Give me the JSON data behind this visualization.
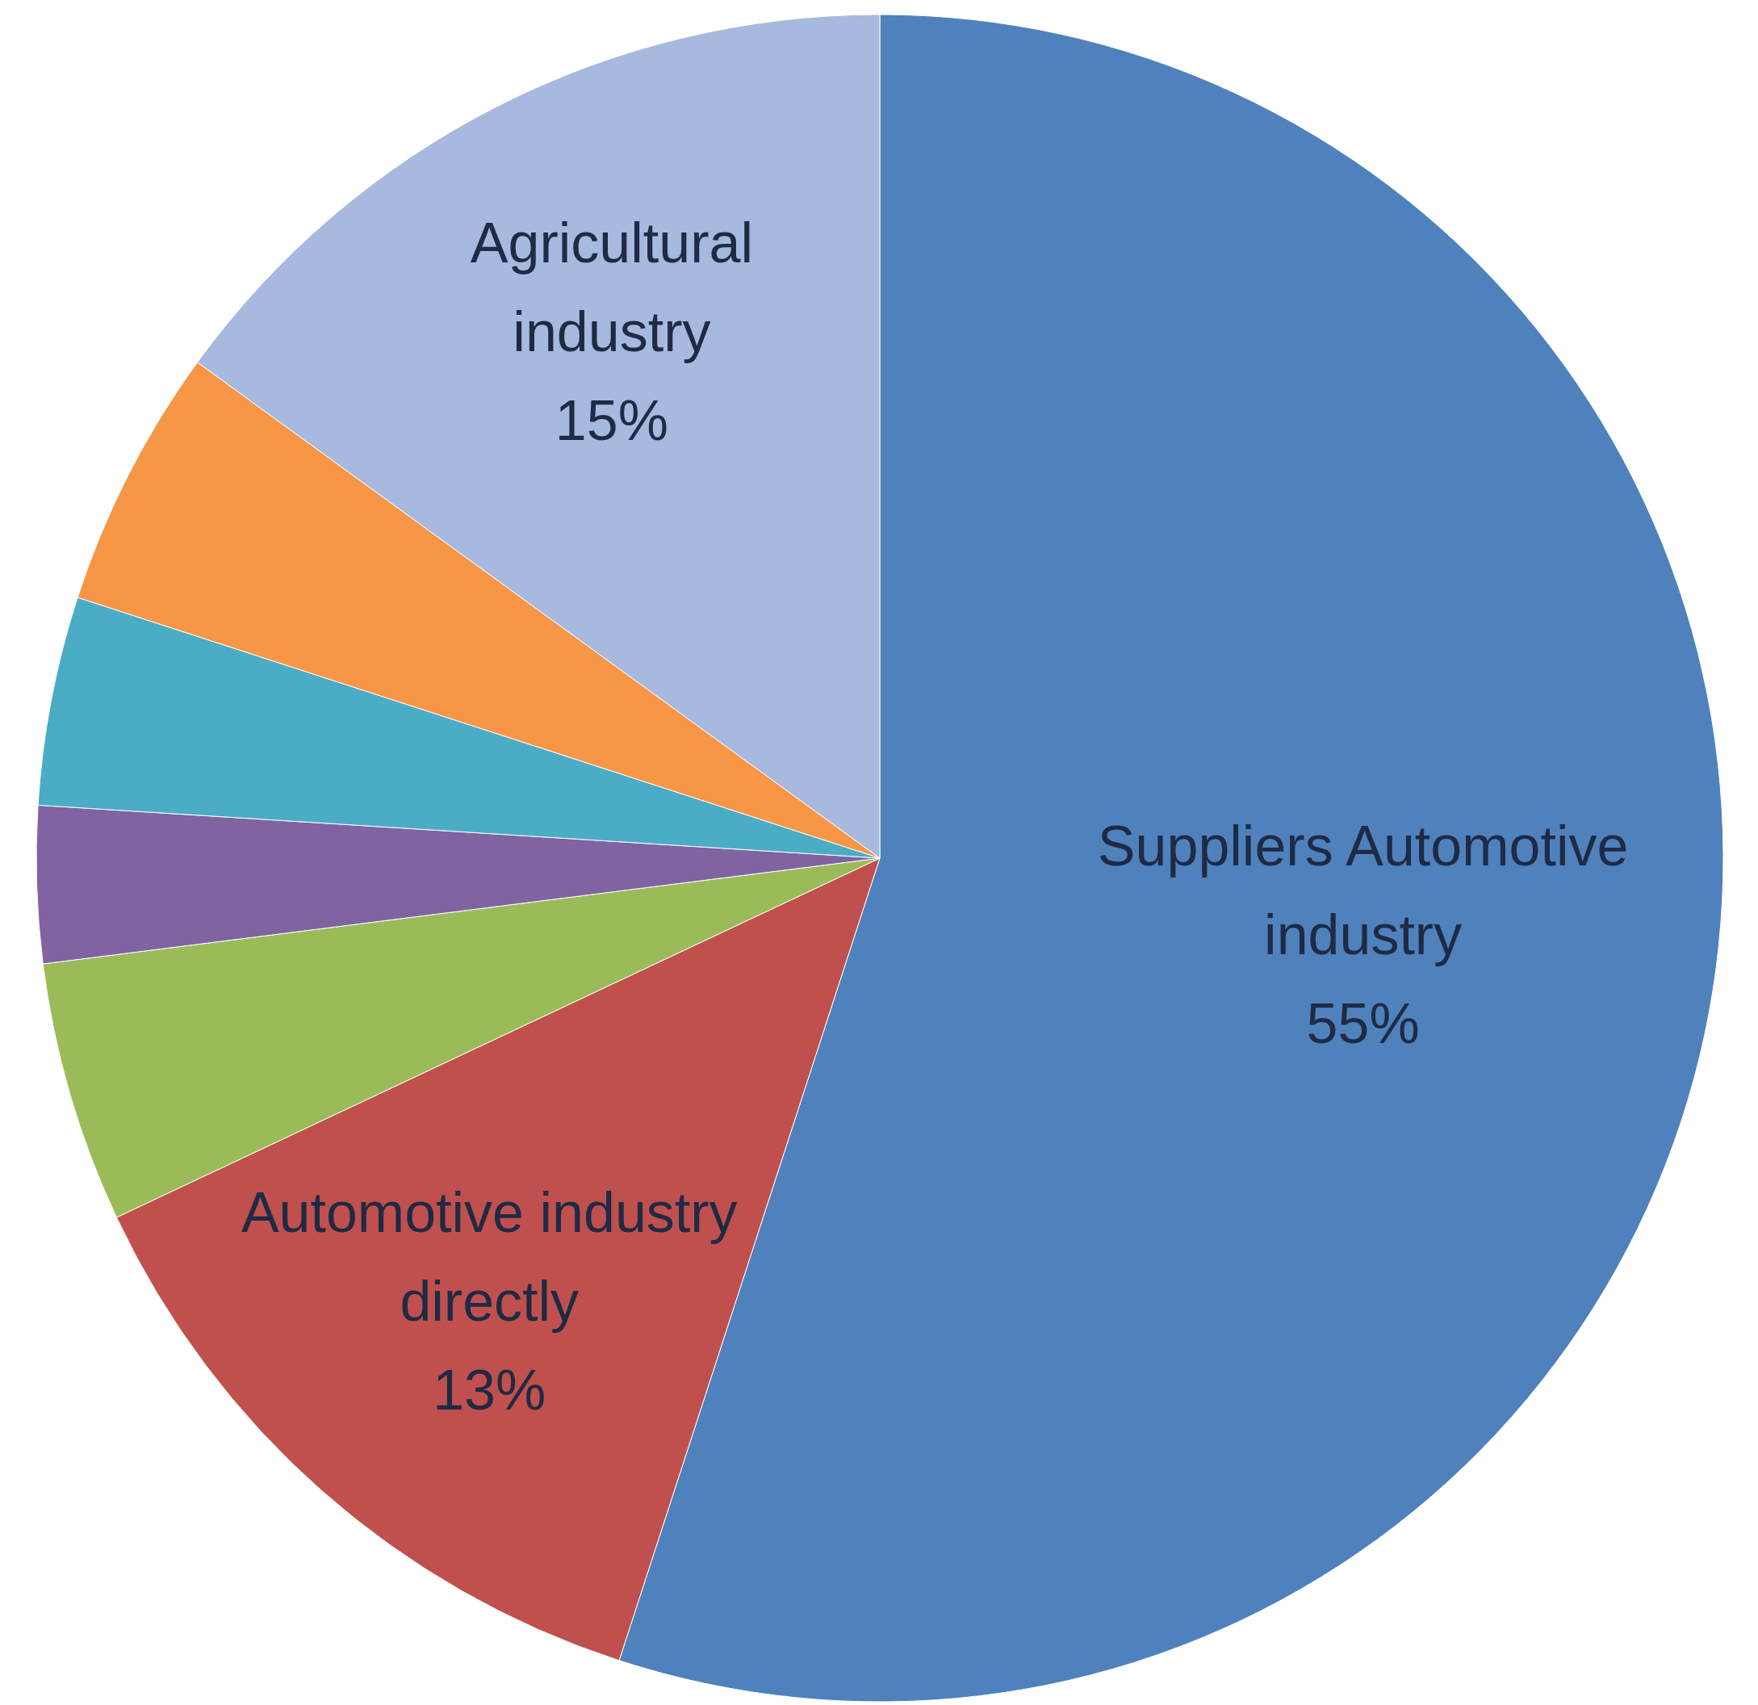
{
  "chart_data": {
    "type": "pie",
    "categories": [
      "Suppliers Automotive industry",
      "Automotive industry directly",
      null,
      null,
      null,
      null,
      "Agricultural industry"
    ],
    "values": [
      55,
      13,
      5,
      3,
      4,
      5,
      15
    ],
    "value_labels": [
      "55%",
      "13%",
      null,
      null,
      null,
      null,
      "15%"
    ],
    "colors": [
      "#4f81bd",
      "#c0504d",
      "#9bbb59",
      "#8064a2",
      "#4bacc6",
      "#f79646",
      "#a7b9de"
    ],
    "legend": false
  }
}
